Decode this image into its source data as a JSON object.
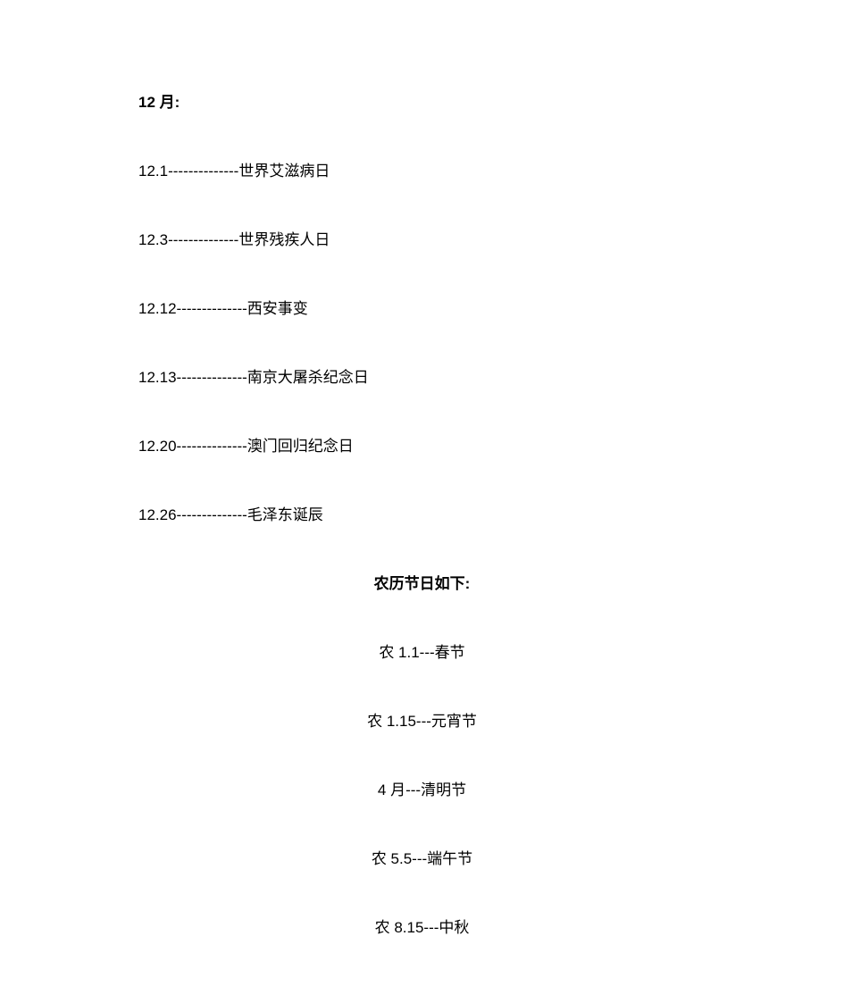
{
  "header": "12 月:",
  "december_items": [
    "12.1--------------世界艾滋病日",
    "12.3--------------世界残疾人日",
    "12.12--------------西安事变",
    "12.13--------------南京大屠杀纪念日",
    "12.20--------------澳门回归纪念日",
    "12.26--------------毛泽东诞辰"
  ],
  "lunar_header": "农历节日如下:",
  "lunar_items": [
    "农 1.1---春节",
    "农 1.15---元宵节",
    "4 月---清明节",
    "农 5.5---端午节",
    "农 8.15---中秋"
  ]
}
